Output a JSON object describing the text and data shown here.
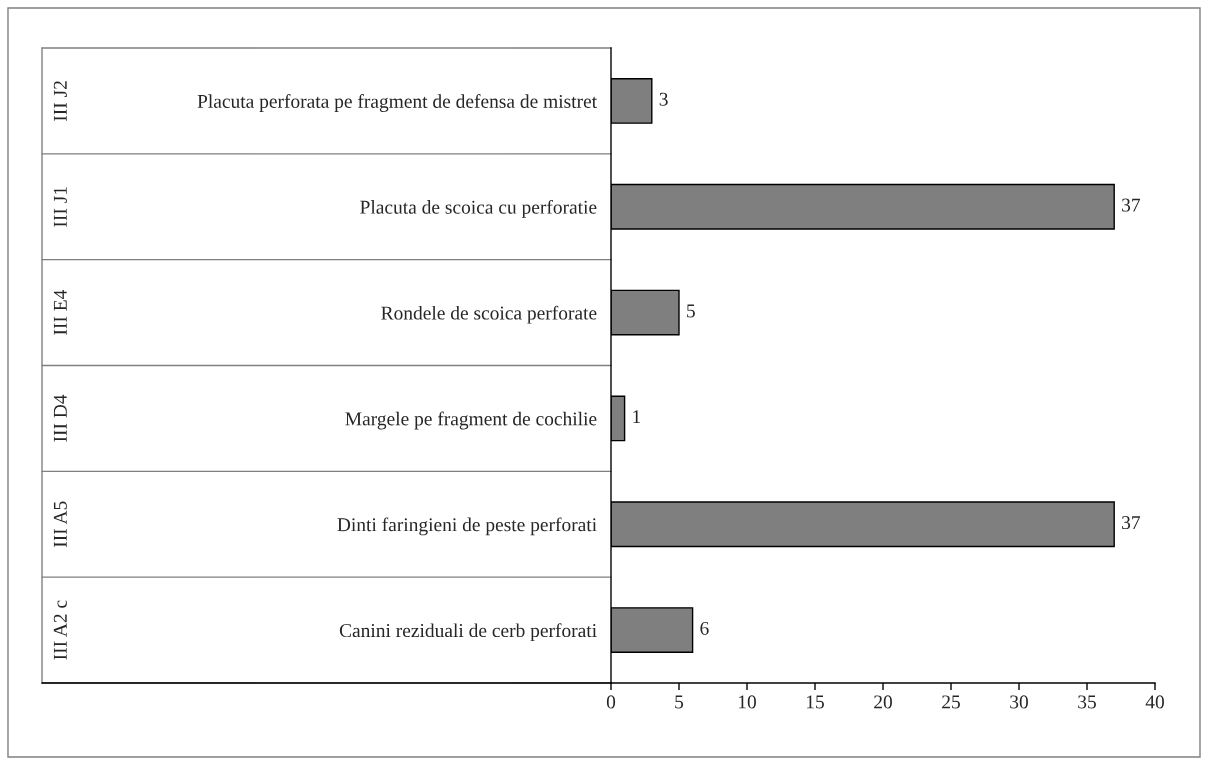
{
  "chart_data": {
    "type": "bar",
    "orientation": "horizontal",
    "categories": [
      "Placuta perforata pe fragment de defensa de mistret",
      "Placuta de scoica cu perforatie",
      "Rondele de scoica perforate",
      "Margele pe fragment de cochilie",
      "Dinti faringieni de peste perforati",
      "Canini reziduali de cerb perforati"
    ],
    "values": [
      3,
      37,
      5,
      1,
      37,
      6
    ],
    "color": "#7f7f7f",
    "xlim": [
      0,
      40
    ],
    "xticks": [
      0,
      5,
      10,
      15,
      20,
      25,
      30,
      35,
      40
    ],
    "data_labels": true,
    "grid": false,
    "legend": false,
    "annotations": [
      "III J2",
      "III J1",
      "III E4",
      "III D4",
      "III A5",
      "III A2 c"
    ]
  }
}
